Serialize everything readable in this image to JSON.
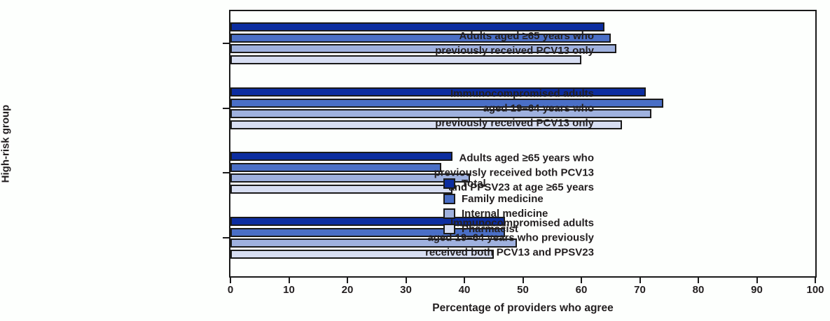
{
  "chart_data": {
    "type": "bar",
    "orientation": "horizontal",
    "xlabel": "Percentage of providers who agree",
    "ylabel": "High-risk group",
    "xlim": [
      0,
      100
    ],
    "xticks": [
      0,
      10,
      20,
      30,
      40,
      50,
      60,
      70,
      80,
      90,
      100
    ],
    "grid": "off",
    "legend_position": "inside-right",
    "categories": [
      "Adults aged ≥65 years who previously received PCV13 only",
      "Immunocompromised adults aged 19–64 years who previously received PCV13 only",
      "Adults aged ≥65 years who previously received both PCV13 and PPSV23 at age ≥65 years",
      "Immunocompromised adults aged 19–64 years who previously received both PCV13 and PPSV23"
    ],
    "category_display_lines": [
      [
        "Adults aged ≥65 years who",
        "previously received PCV13 only"
      ],
      [
        "Immunocompromised adults",
        "aged 19–64 years who",
        "previously received PCV13 only"
      ],
      [
        "Adults aged ≥65 years who",
        "previously received both PCV13",
        "and PPSV23 at age ≥65 years"
      ],
      [
        "Immunocompromised adults",
        "aged 19–64 years who previously",
        "received both PCV13 and PPSV23"
      ]
    ],
    "series": [
      {
        "name": "Total",
        "color": "#0c2da0",
        "values": [
          64,
          71,
          38,
          47
        ]
      },
      {
        "name": "Family medicine",
        "color": "#4a6fc6",
        "values": [
          65,
          74,
          36,
          47
        ]
      },
      {
        "name": "Internal medicine",
        "color": "#9fb1de",
        "values": [
          66,
          72,
          41,
          49
        ]
      },
      {
        "name": "Pharmacist",
        "color": "#d7def2",
        "values": [
          60,
          67,
          38,
          45
        ]
      }
    ],
    "colors": {
      "bar_border": "#1a1a1a",
      "axis": "#1a1a1a",
      "text": "#231f20",
      "background": "#fdfffd"
    }
  }
}
